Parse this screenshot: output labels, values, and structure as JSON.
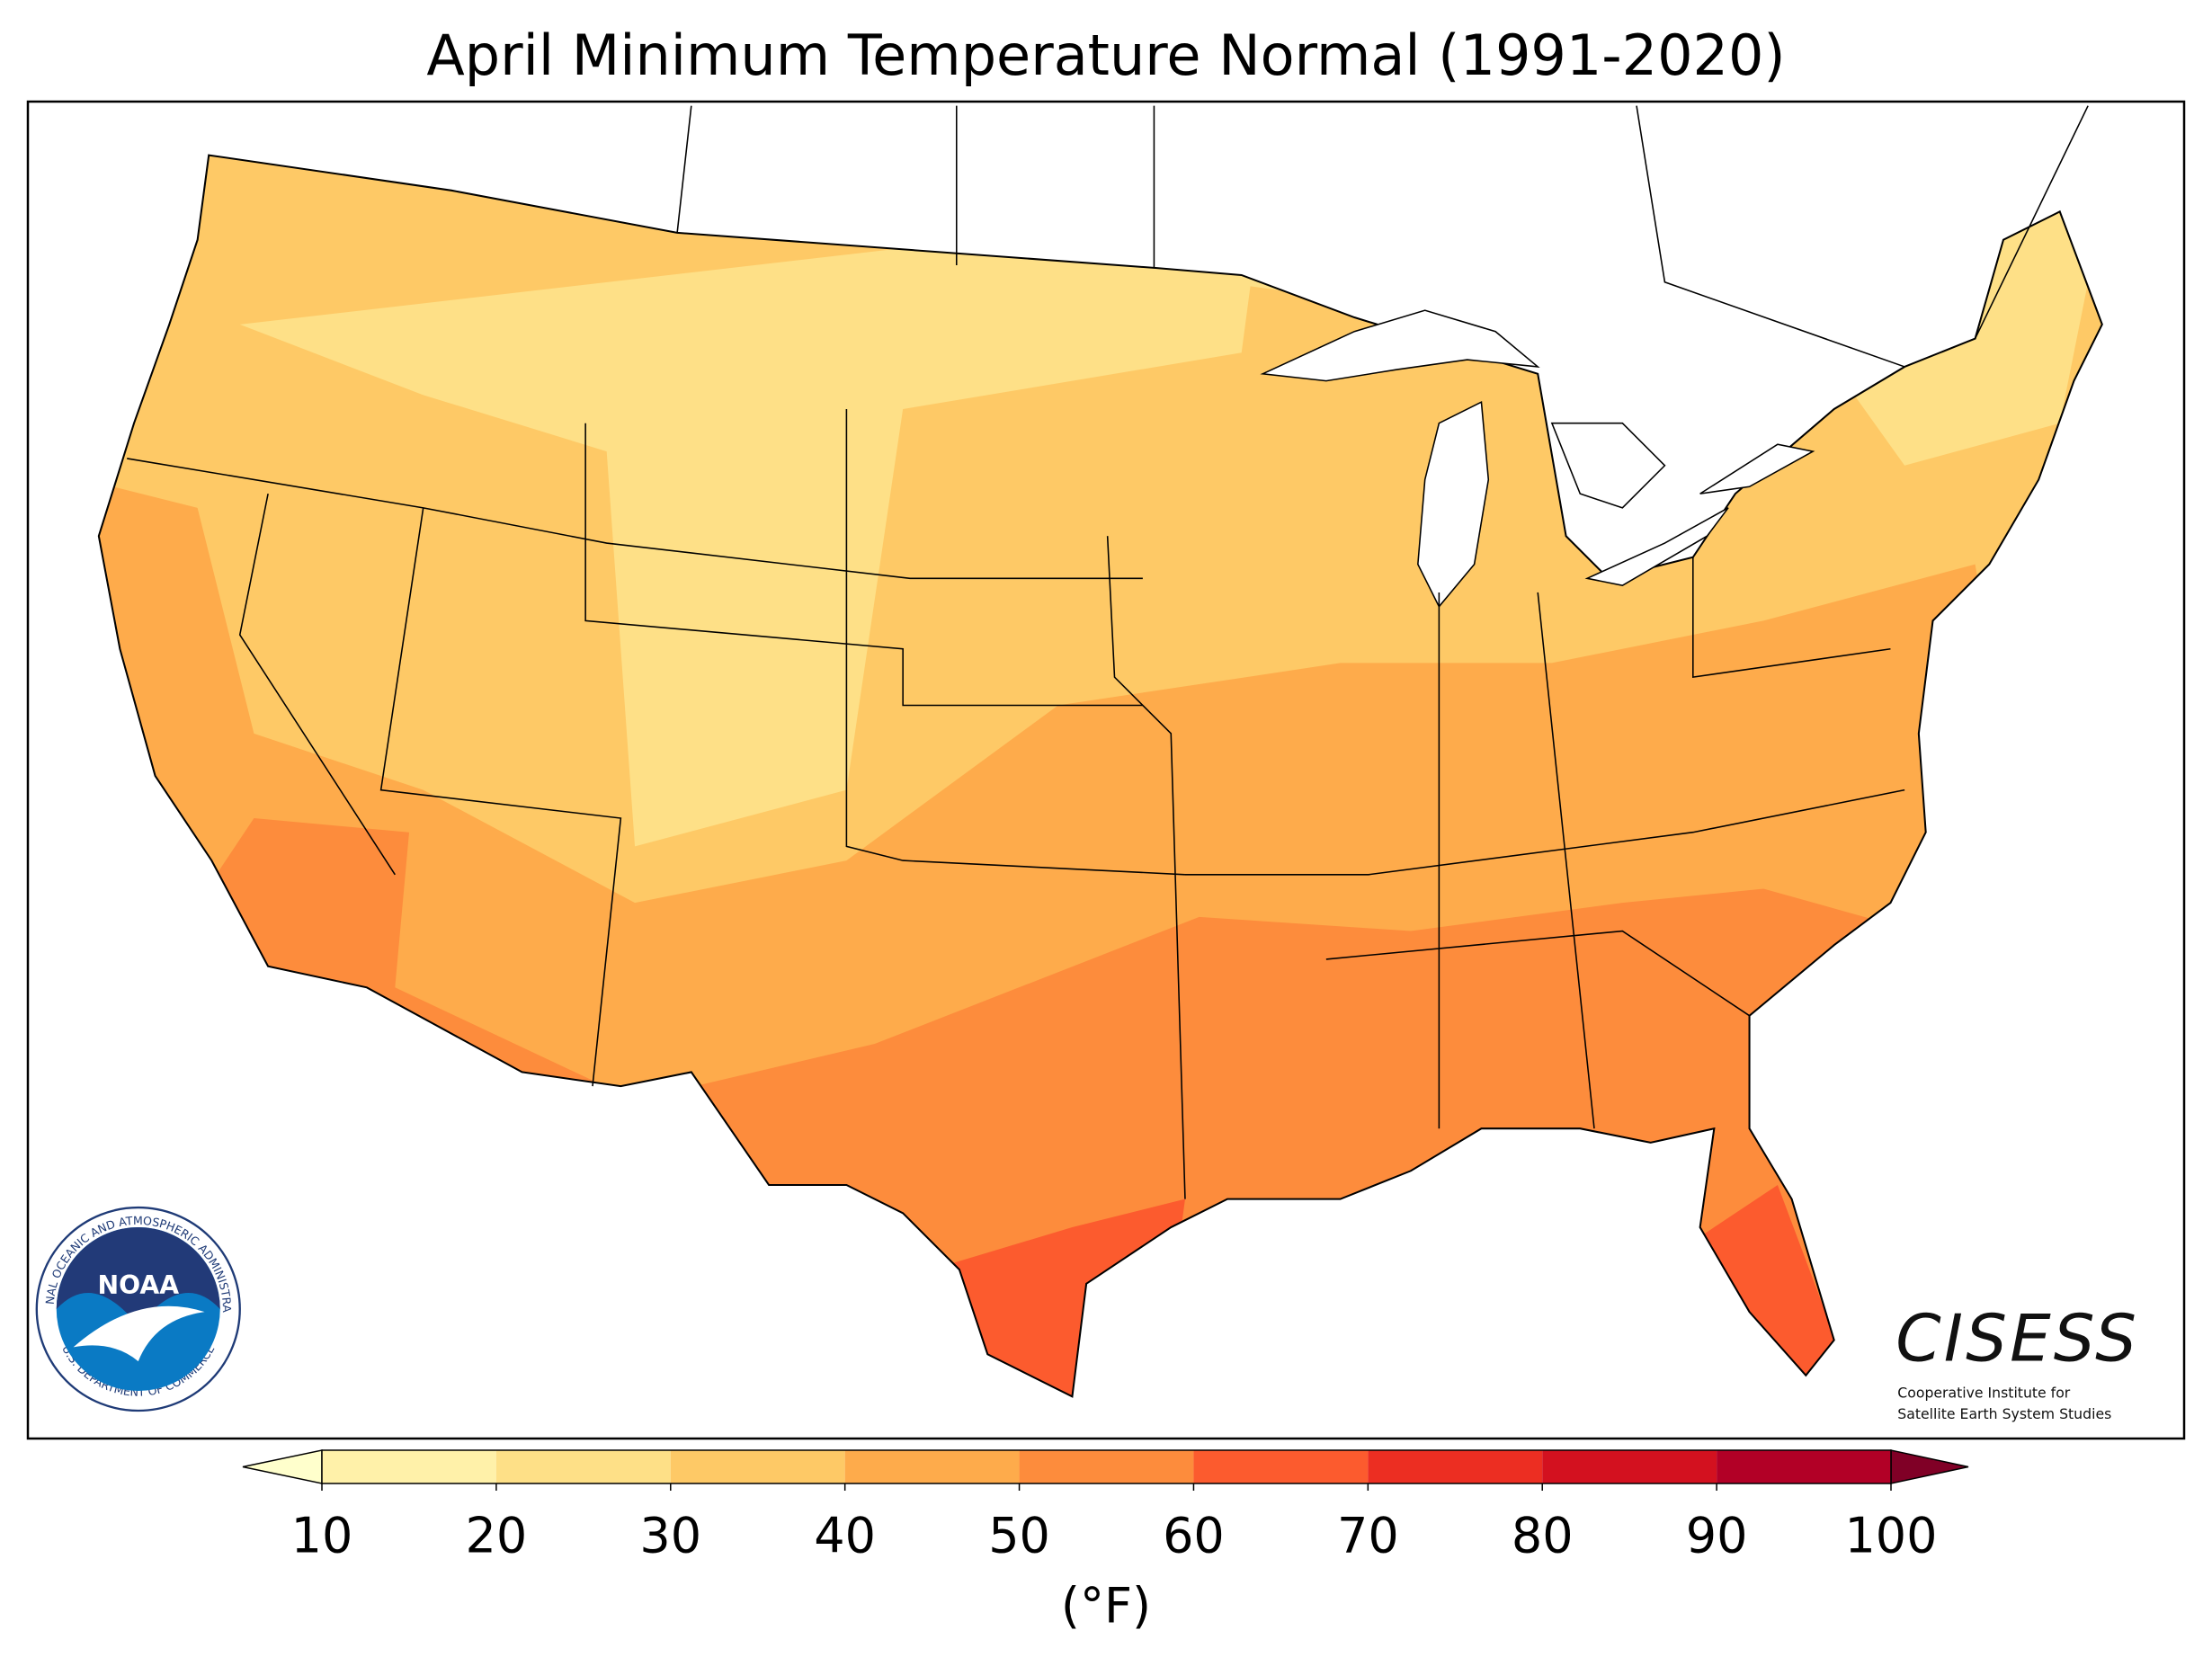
{
  "title": "April Minimum Temperature Normal (1991-2020)",
  "colorbar": {
    "ticks": [
      10,
      20,
      30,
      40,
      50,
      60,
      70,
      80,
      90,
      100
    ],
    "colors": [
      "#fff1a9",
      "#fee087",
      "#fec966",
      "#feab4b",
      "#fd8c3c",
      "#fc5b2e",
      "#ec2e22",
      "#d3111f",
      "#b20026"
    ],
    "under_color": "#ffffcc",
    "over_color": "#800026",
    "label": "(°F)"
  },
  "logos": {
    "noaa": {
      "text": "NOAA",
      "ring_text": "NATIONAL OCEANIC AND ATMOSPHERIC ADMINISTRATION",
      "bottom_text": "U.S. DEPARTMENT OF COMMERCE"
    },
    "cisess": {
      "name": "CISESS",
      "line1": "Cooperative Institute for",
      "line2": "Satellite Earth System Studies"
    }
  }
}
